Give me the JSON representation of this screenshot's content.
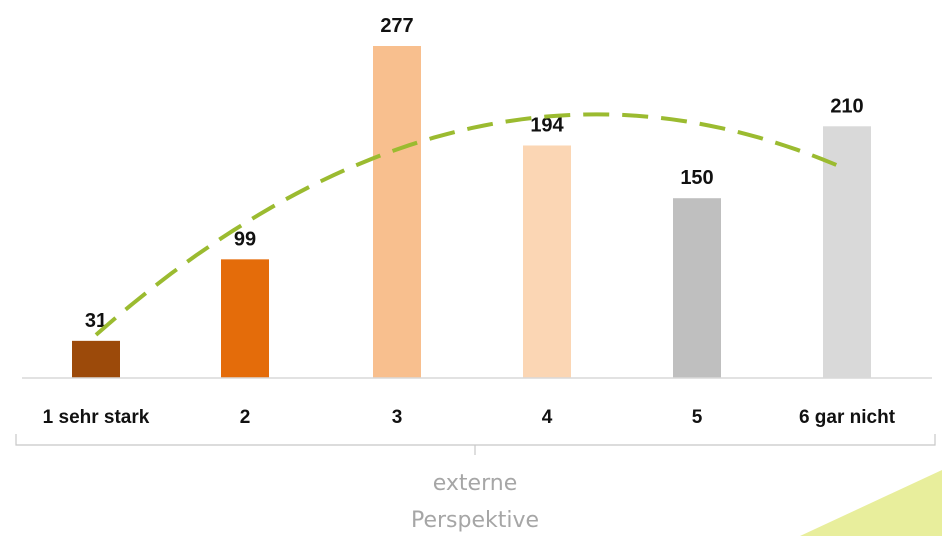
{
  "chart_data": {
    "type": "bar",
    "categories": [
      "1 sehr stark",
      "2",
      "3",
      "4",
      "5",
      "6 gar nicht"
    ],
    "values": [
      31,
      99,
      277,
      194,
      150,
      210
    ],
    "bar_colors": [
      "#9c4a0a",
      "#e46c0a",
      "#f8bf8e",
      "#fbd6b4",
      "#bfbfbf",
      "#d9d9d9"
    ],
    "trend": {
      "type": "polynomial",
      "style": "dashed",
      "color": "#9bbb30"
    },
    "group_label_line1": "externe",
    "group_label_line2": "Perspektive",
    "ylim": [
      0,
      277
    ],
    "title": "",
    "xlabel": "",
    "ylabel": "",
    "grid": false,
    "decoration_color": "#e8ee9c"
  }
}
